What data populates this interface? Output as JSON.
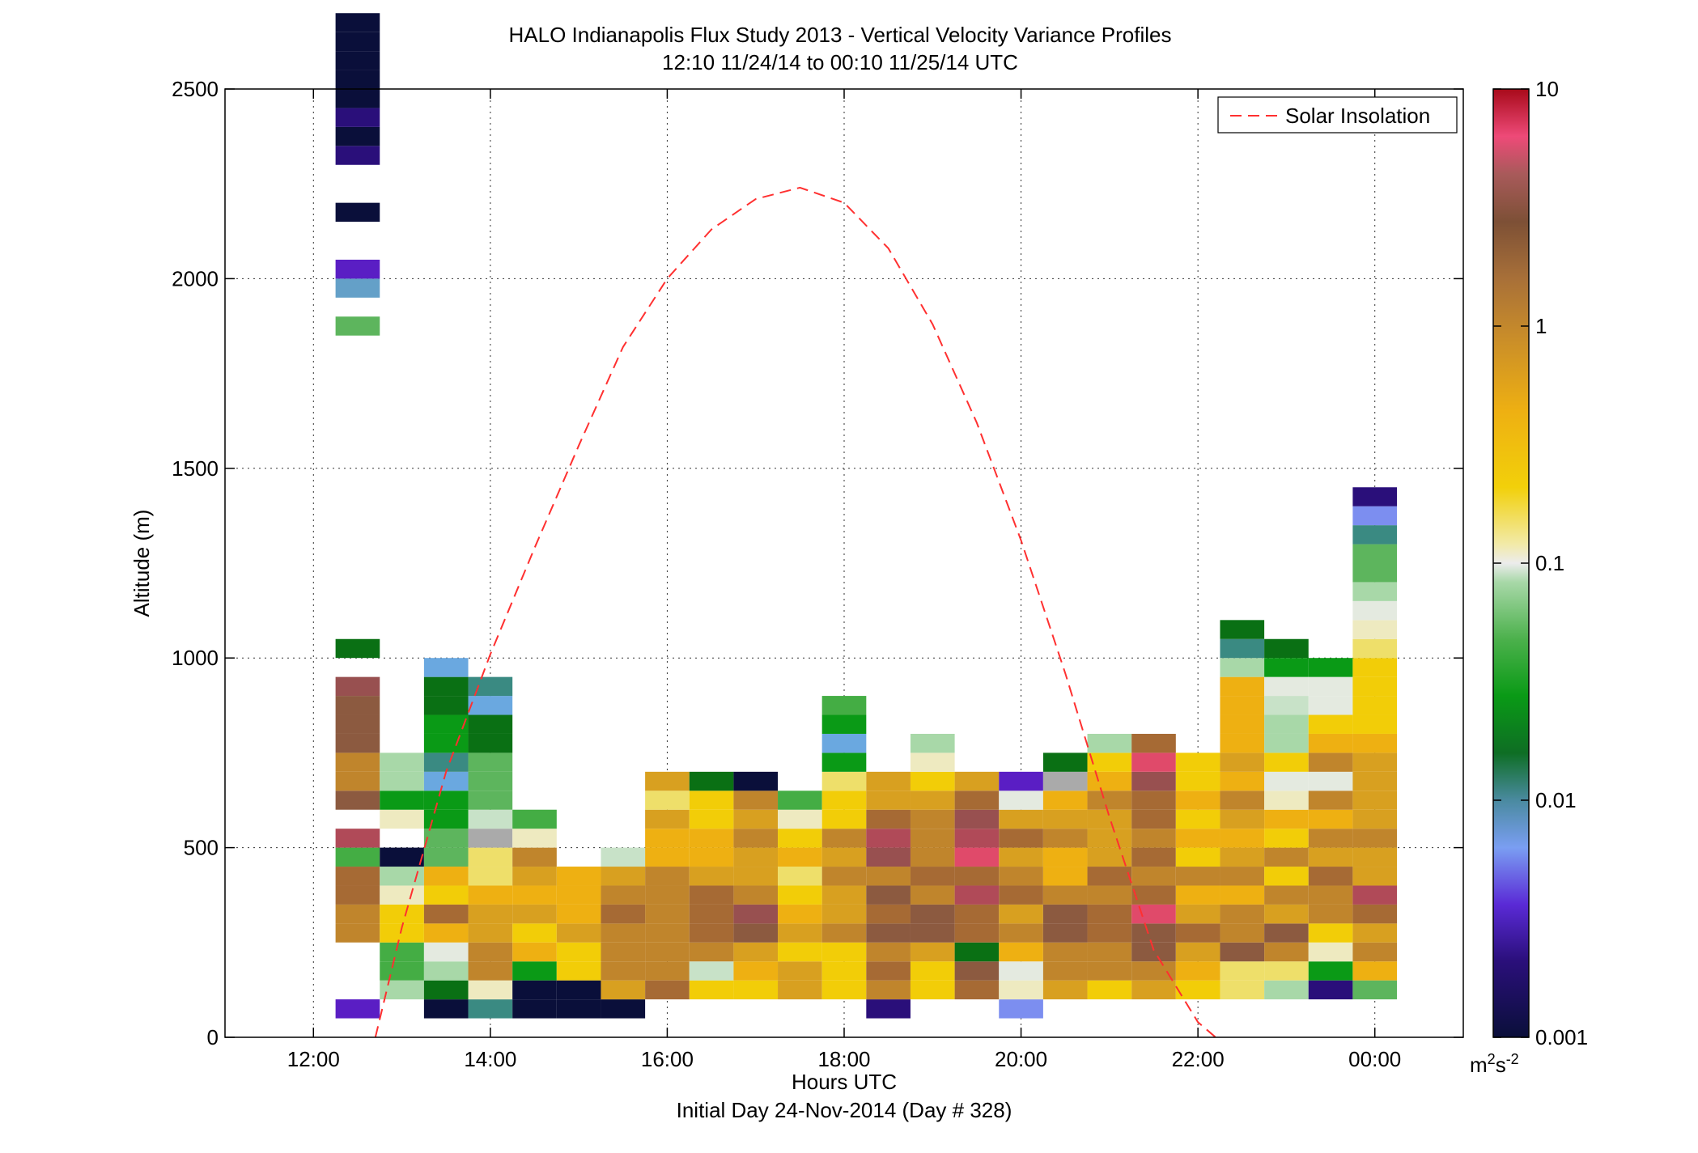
{
  "chart_data": {
    "type": "heatmap",
    "title": "HALO Indianapolis Flux Study 2013 - Vertical Velocity Variance Profiles",
    "subtitle": "12:10 11/24/14 to 00:10 11/25/14  UTC",
    "xlabel": "Hours UTC",
    "xlabel2": "Initial Day 24-Nov-2014 (Day # 328)",
    "ylabel": "Altitude (m)",
    "xlim": [
      11.0,
      25.0
    ],
    "ylim": [
      0,
      2500
    ],
    "x_ticks": [
      12,
      14,
      16,
      18,
      20,
      22,
      24
    ],
    "x_tick_labels": [
      "12:00",
      "14:00",
      "16:00",
      "18:00",
      "20:00",
      "22:00",
      "00:00"
    ],
    "y_ticks": [
      0,
      500,
      1000,
      1500,
      2000,
      2500
    ],
    "y_tick_labels": [
      "0",
      "500",
      "1000",
      "1500",
      "2000",
      "2500"
    ],
    "grid": true,
    "legend": {
      "placement": "top-right",
      "entries": [
        "Solar Insolation"
      ]
    },
    "colorbar": {
      "scale": "log",
      "range": [
        0.001,
        10
      ],
      "tick_values": [
        0.001,
        0.01,
        0.1,
        1,
        10
      ],
      "tick_labels": [
        "0.001",
        "0.01",
        "0.1",
        "1",
        "10"
      ],
      "unit_base": "m",
      "unit_sup1": "2",
      "unit_mid": "s",
      "unit_sup2": "-2",
      "stops": [
        [
          0.0,
          "#0a0f3a"
        ],
        [
          0.08,
          "#2a0f7a"
        ],
        [
          0.14,
          "#5a2ad6"
        ],
        [
          0.2,
          "#7a9ef2"
        ],
        [
          0.25,
          "#4a8aa0"
        ],
        [
          0.3,
          "#0e6e24"
        ],
        [
          0.36,
          "#0a9a16"
        ],
        [
          0.42,
          "#4cb14c"
        ],
        [
          0.48,
          "#a8d8a8"
        ],
        [
          0.5,
          "#ececec"
        ],
        [
          0.52,
          "#f2eaa8"
        ],
        [
          0.58,
          "#f2d00a"
        ],
        [
          0.66,
          "#eeb012"
        ],
        [
          0.74,
          "#c88c2a"
        ],
        [
          0.8,
          "#a87038"
        ],
        [
          0.86,
          "#7d5036"
        ],
        [
          0.91,
          "#a85a5a"
        ],
        [
          0.95,
          "#ee4a78"
        ],
        [
          1.0,
          "#a80a1a"
        ]
      ]
    },
    "bin_height_m": 50,
    "bin_width_h": 0.5,
    "color_key": {
      "N": "#0a0f3a",
      "P": "#2a0f7a",
      "V": "#5a1ec4",
      "W": "#6a40d8",
      "L": "#7c8ef0",
      "S": "#6aa8e0",
      "A": "#64a0c8",
      "T": "#3a8a82",
      "E": "#0a7014",
      "F": "#0a9a16",
      "M": "#44ad44",
      "G": "#5db55d",
      "H": "#a8d8a8",
      "I": "#c8e2c8",
      "C": "#e4eae0",
      "K": "#aaaaaa",
      "J": "#eeeac0",
      "Q": "#eedf6a",
      "Y": "#f2cd08",
      "O": "#eeb012",
      "D": "#d8a020",
      "B": "#c0852c",
      "U": "#a66a34",
      "R": "#8c5a40",
      "Z": "#985050",
      "X": "#b04a58",
      "K2": "#e04a6a"
    },
    "columns": [
      {
        "x": 12.5,
        "y0": 50,
        "cells": "V...BBUUMX.RBBRRRZ.E"
      },
      {
        "x": 12.5,
        "y0": 1850,
        "cells": "G.AV..N..PNPNNNNN"
      },
      {
        "x": 13.0,
        "y0": 100,
        "cells": "HMMYYJHN.JFHH"
      },
      {
        "x": 13.5,
        "y0": 50,
        "cells": "NEHCOUYOGGFFSTFFEES"
      },
      {
        "x": 14.0,
        "y0": 50,
        "cells": "TJBBDDOQQKIGGGEEST"
      },
      {
        "x": 14.5,
        "y0": 50,
        "cells": "NNFOYDODBJM"
      },
      {
        "x": 15.0,
        "y0": 50,
        "cells": "NNYYDOOO"
      },
      {
        "x": 15.5,
        "y0": 50,
        "cells": "NDBBBUBDI"
      },
      {
        "x": 16.0,
        "y0": 100,
        "cells": "UBBBBBBOODQD"
      },
      {
        "x": 16.5,
        "y0": 100,
        "cells": "YIBUUUDOOYYE"
      },
      {
        "x": 17.0,
        "y0": 100,
        "cells": "YODRZBDDBDBN"
      },
      {
        "x": 17.5,
        "y0": 100,
        "cells": "DDYDOYQOYJM"
      },
      {
        "x": 18.0,
        "y0": 100,
        "cells": "YYYBDDBDBYYQFSFM"
      },
      {
        "x": 18.5,
        "y0": 50,
        "cells": "PBUBRURBZXUDD"
      },
      {
        "x": 19.0,
        "y0": 100,
        "cells": "YYDRRBUBBBDYJH"
      },
      {
        "x": 19.5,
        "y0": 100,
        "cells": "UREUUXUK2XZUD"
      },
      {
        "x": 20.0,
        "y0": 50,
        "cells": "LJCOBDUBDUDCV"
      },
      {
        "x": 20.5,
        "y0": 100,
        "cells": "DBBRRBOOBDOKE"
      },
      {
        "x": 21.0,
        "y0": 100,
        "cells": "YBBUUBUDDDBOYH"
      },
      {
        "x": 21.5,
        "y0": 100,
        "cells": "DBRRK2UBUBUUZK2U"
      },
      {
        "x": 22.0,
        "y0": 100,
        "cells": "YODUDOBYOYOYY"
      },
      {
        "x": 22.5,
        "y0": 100,
        "cells": "QQRBBOBDODBODOOOOHTE"
      },
      {
        "x": 23.0,
        "y0": 100,
        "cells": "HQBRDBYBYOJCYHHICFE"
      },
      {
        "x": 23.5,
        "y0": 100,
        "cells": "PFJYBBUDBOBCBOYCCF"
      },
      {
        "x": 24.0,
        "y0": 100,
        "cells": "GOBDUXDDBDDDDOYYYYQJCHGGTLP"
      }
    ],
    "solar_insolation": {
      "name": "Solar Insolation",
      "x": [
        12.7,
        13.0,
        13.5,
        14.0,
        14.5,
        15.0,
        15.5,
        16.0,
        16.5,
        17.0,
        17.5,
        18.0,
        18.5,
        19.0,
        19.5,
        20.0,
        20.5,
        21.0,
        21.5,
        22.0,
        22.2
      ],
      "y": [
        0,
        290,
        700,
        1010,
        1290,
        1560,
        1820,
        2000,
        2130,
        2210,
        2240,
        2200,
        2080,
        1880,
        1620,
        1310,
        960,
        580,
        230,
        40,
        0
      ],
      "color": "#ff3030",
      "style": "dashed"
    }
  }
}
